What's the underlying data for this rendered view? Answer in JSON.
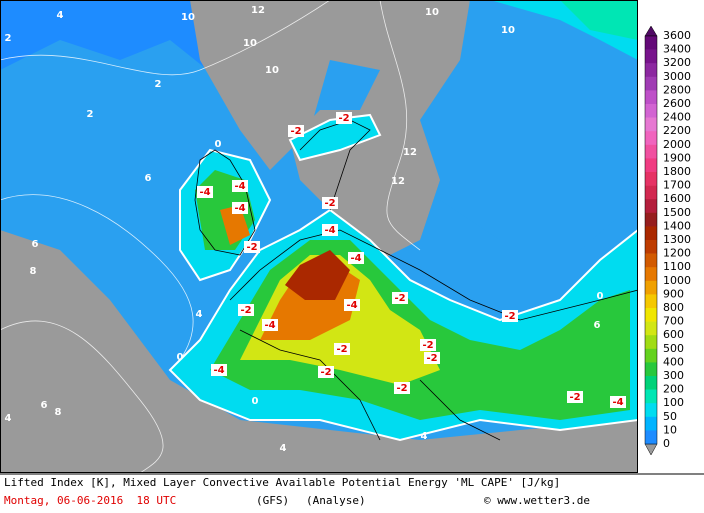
{
  "map": {
    "legend": {
      "labels": [
        3600,
        3400,
        3200,
        3000,
        2800,
        2600,
        2400,
        2200,
        2000,
        1900,
        1800,
        1700,
        1600,
        1500,
        1400,
        1300,
        1200,
        1100,
        1000,
        900,
        800,
        700,
        600,
        500,
        400,
        300,
        200,
        100,
        50,
        10,
        0
      ],
      "colors": [
        "#640a78",
        "#78148c",
        "#8c28a0",
        "#a03cb4",
        "#be50c8",
        "#d264d2",
        "#e678d2",
        "#f064be",
        "#f050a0",
        "#f03c82",
        "#e63264",
        "#d22850",
        "#b41e3c",
        "#961e1e",
        "#aa2800",
        "#be3c00",
        "#d25a00",
        "#e67800",
        "#f0a000",
        "#f5c800",
        "#f0e600",
        "#d2e614",
        "#a0dc14",
        "#64d21e",
        "#28c83c",
        "#00d278",
        "#00e6b4",
        "#00dcf0",
        "#00b4ff",
        "#1e8cff"
      ]
    },
    "contour_labels": [
      4,
      10,
      12,
      10,
      10,
      2,
      2,
      2,
      10,
      10,
      -2,
      -2,
      12,
      12,
      0,
      -4,
      -4,
      -4,
      -2,
      -4,
      -2,
      -4,
      -4,
      -4,
      -2,
      -2,
      -2,
      -4,
      -2,
      -2,
      -2,
      -2,
      -2,
      -4,
      -2,
      0,
      6,
      6,
      8,
      8,
      6,
      4,
      6,
      4,
      0,
      0,
      4,
      4
    ],
    "caption": "Lifted Index [K], Mixed Layer Convective Available Potential Energy 'ML CAPE' [J/kg]",
    "date": "Montag, 06-06-2016  18 UTC",
    "model": "(GFS)",
    "run": "(Analyse)",
    "credit": "© www.wetter3.de"
  }
}
